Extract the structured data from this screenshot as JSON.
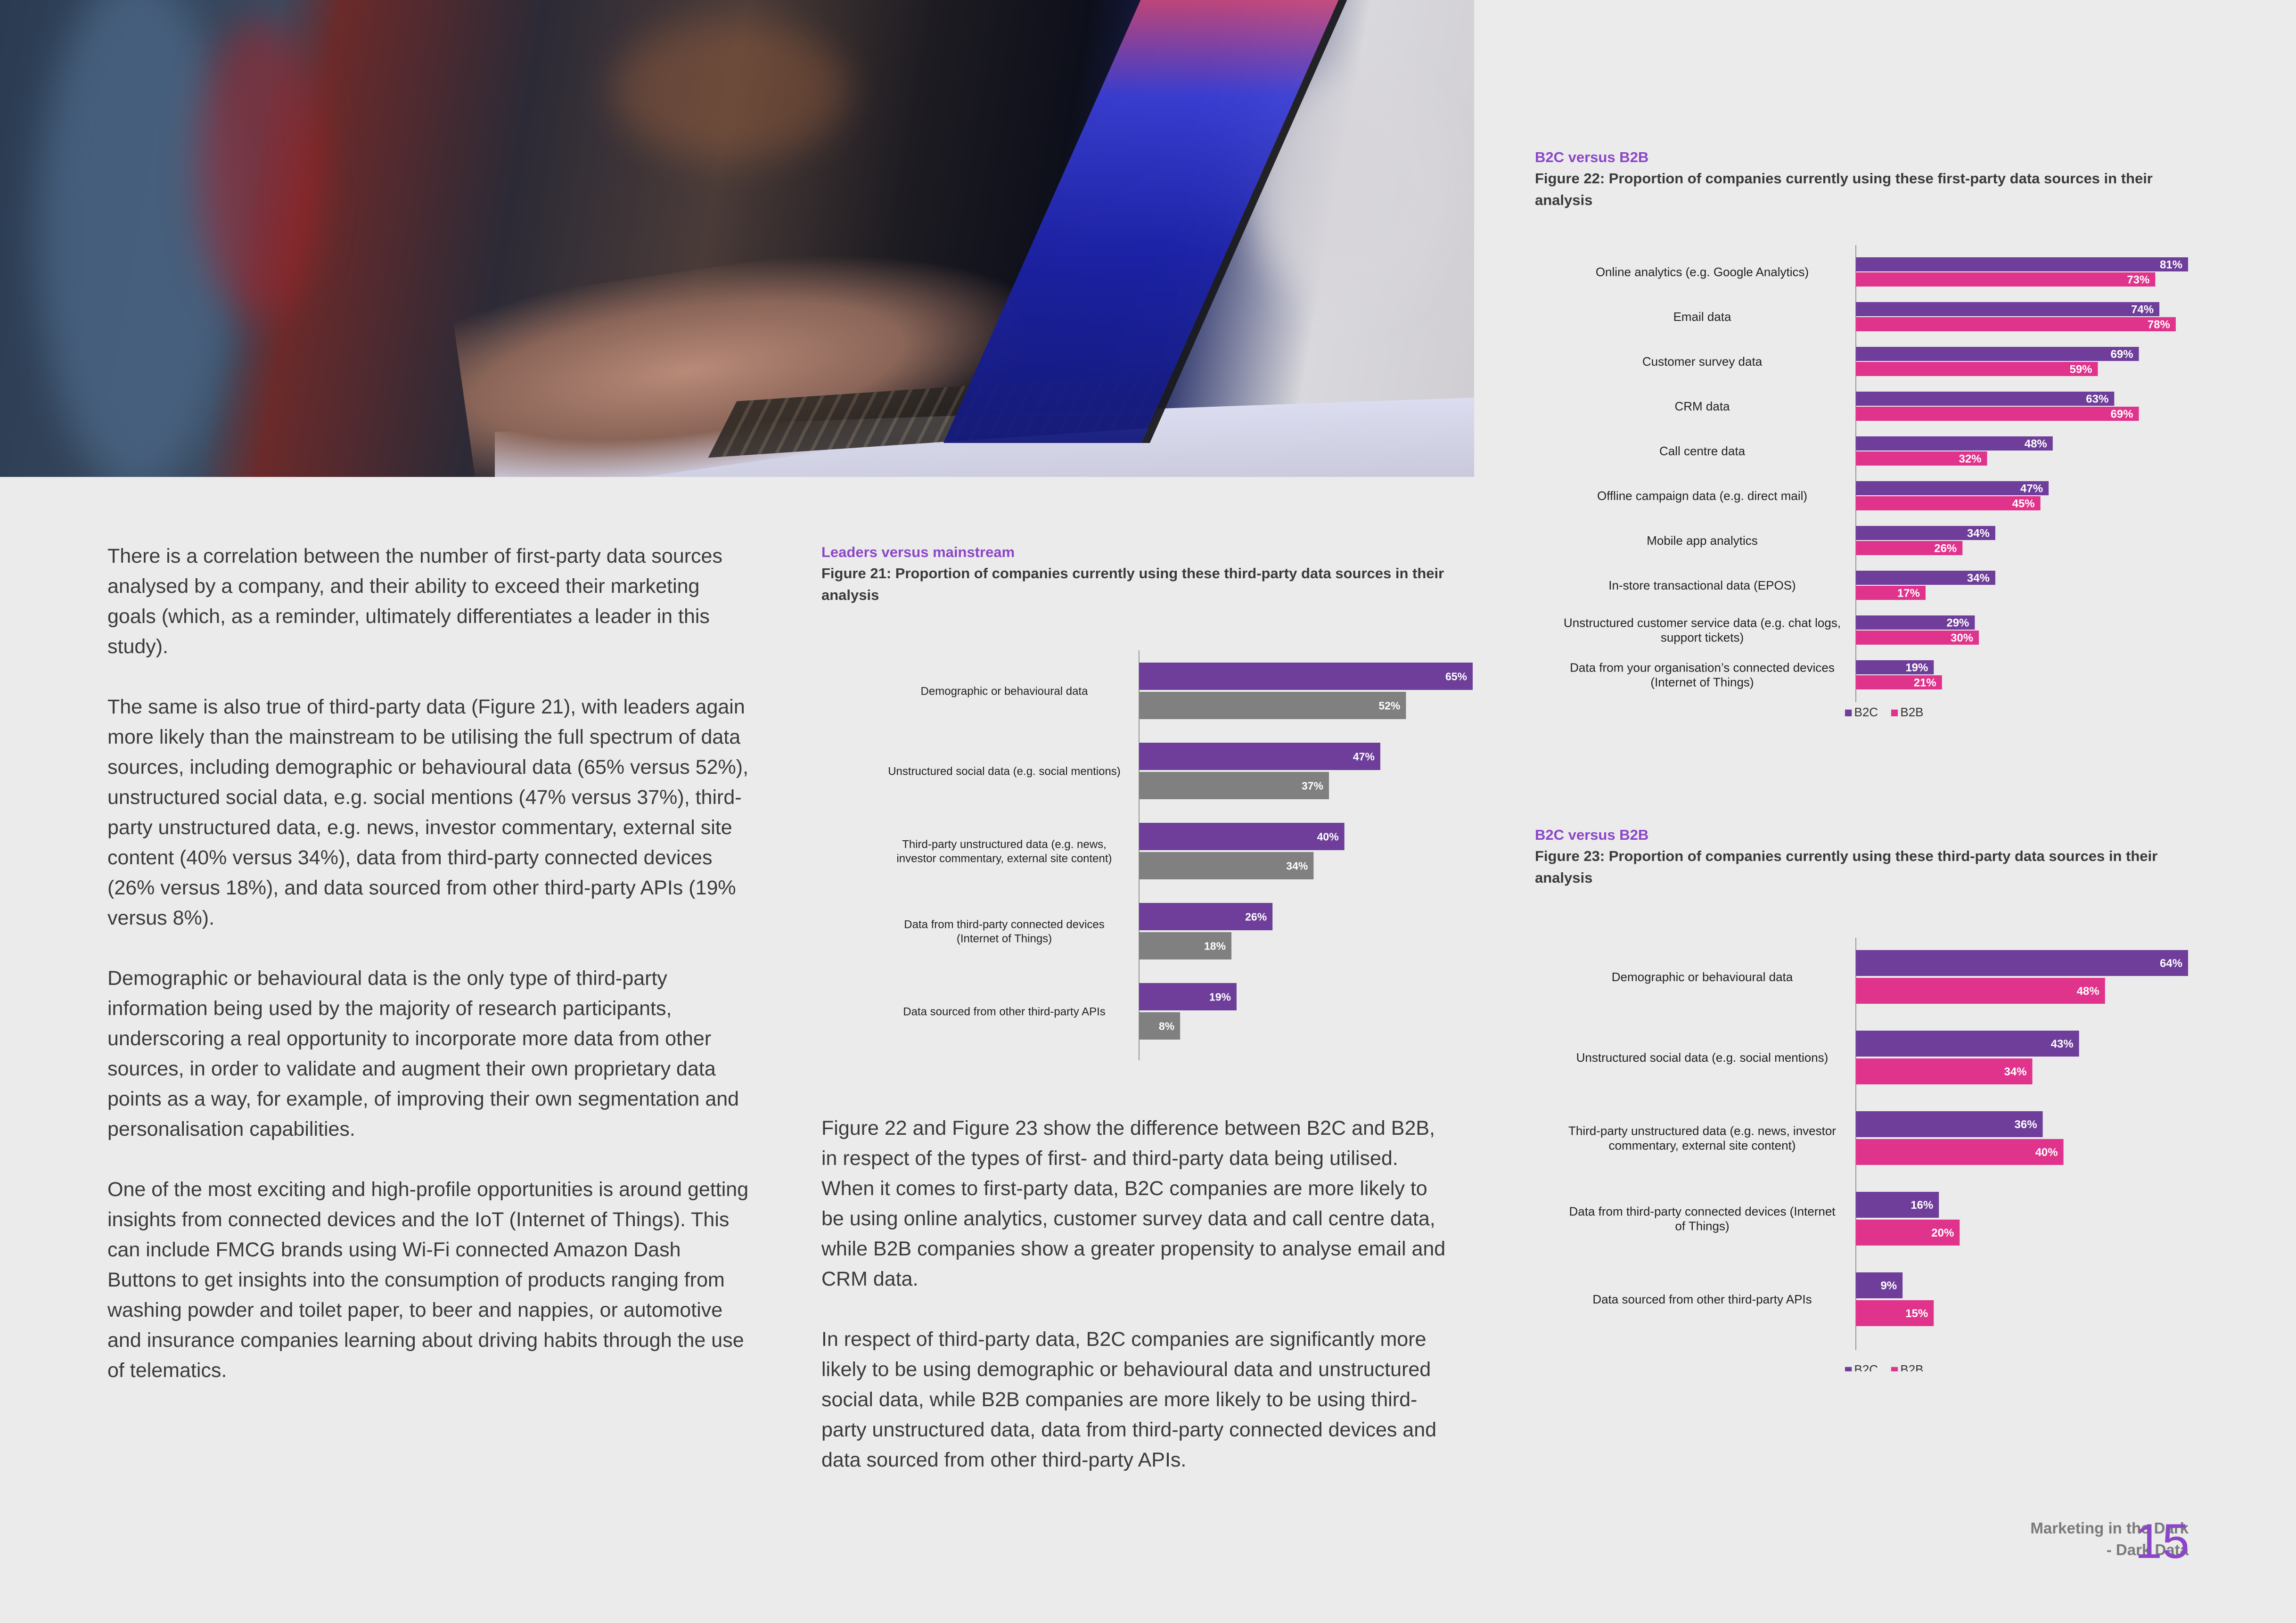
{
  "colors": {
    "leaders": "#6e3e9a",
    "mainstream": "#808080",
    "b2c": "#6e3e9a",
    "b2b": "#e0338c",
    "accent": "#8b46c8"
  },
  "body_paragraphs": [
    "There is a correlation between the number of first-party data sources analysed by a company, and their ability to exceed their marketing goals (which, as a reminder, ultimately differentiates a leader in this study).",
    "The same is also true of third-party data (Figure 21), with leaders again more likely than the mainstream to be utilising the full spectrum of data sources, including demographic or behavioural data (65% versus 52%), unstructured social data, e.g. social mentions (47% versus 37%), third-party unstructured data, e.g. news, investor commentary, external site content (40% versus 34%), data from third-party connected devices (26% versus 18%), and data sourced from other third-party APIs (19% versus 8%).",
    "Demographic or behavioural data is the only type of third-party information being used by the majority of research participants, underscoring a real opportunity to incorporate more data from other sources, in order to validate and augment their own proprietary data points as a way, for example, of improving their own segmentation and personalisation capabilities.",
    "One of the most exciting and high-profile opportunities is around getting insights from connected devices and the IoT (Internet of Things). This can include FMCG brands using Wi-Fi connected Amazon Dash Buttons to get insights into the consumption of products ranging from washing powder and toilet paper, to beer and nappies, or automotive and insurance companies learning about driving habits through the use of telematics."
  ],
  "mid_paragraphs": [
    "Figure 22 and Figure 23 show the difference between B2C and B2B, in respect of the types of first- and third-party data being utilised. When it comes to first-party data, B2C companies are more likely to be using online analytics, customer survey data and call centre data, while B2B companies show a greater propensity to analyse email and CRM data.",
    "In respect of third-party data, B2C companies are significantly more likely to be using demographic or behavioural data and unstructured social data, while B2B companies are more likely to be using third-party unstructured data, data from third-party connected devices and data sourced from other third-party APIs."
  ],
  "footer": {
    "title_line1": "Marketing in the Dark",
    "title_line2": "- Dark Data",
    "page_number": "15"
  },
  "chart_data": [
    {
      "id": "fig21",
      "type": "bar",
      "orientation": "horizontal",
      "subtitle": "Leaders versus mainstream",
      "title": "Figure 21: Proportion of companies currently using these third-party data sources in their analysis",
      "categories": [
        "Demographic or behavioural data",
        "Unstructured social data (e.g. social mentions)",
        "Third-party unstructured data (e.g. news, investor commentary, external site content)",
        "Data from third-party connected devices (Internet of Things)",
        "Data sourced from other third-party APIs"
      ],
      "series": [
        {
          "name": "Leaders",
          "values": [
            65,
            47,
            40,
            26,
            19
          ]
        },
        {
          "name": "Mainstream",
          "values": [
            52,
            37,
            34,
            18,
            8
          ]
        }
      ],
      "value_suffix": "%",
      "xlim": [
        0,
        65
      ],
      "legend": "bottom"
    },
    {
      "id": "fig22",
      "type": "bar",
      "orientation": "horizontal",
      "subtitle": "B2C versus B2B",
      "title": "Figure 22: Proportion of companies currently using these first-party data sources in their analysis",
      "categories": [
        "Online analytics (e.g. Google Analytics)",
        "Email data",
        "Customer survey data",
        "CRM data",
        "Call centre data",
        "Offline campaign data (e.g. direct mail)",
        "Mobile app analytics",
        "In-store transactional data (EPOS)",
        "Unstructured customer service data (e.g. chat logs, support tickets)",
        "Data from your organisation’s connected devices (Internet of Things)"
      ],
      "series": [
        {
          "name": "B2C",
          "values": [
            81,
            74,
            69,
            63,
            48,
            47,
            34,
            34,
            29,
            19
          ]
        },
        {
          "name": "B2B",
          "values": [
            73,
            78,
            59,
            69,
            32,
            45,
            26,
            17,
            30,
            21
          ]
        }
      ],
      "value_suffix": "%",
      "xlim": [
        0,
        81
      ],
      "legend": "bottom"
    },
    {
      "id": "fig23",
      "type": "bar",
      "orientation": "horizontal",
      "subtitle": "B2C versus B2B",
      "title": "Figure 23: Proportion of companies currently using these third-party data sources in their analysis",
      "categories": [
        "Demographic or behavioural data",
        "Unstructured social data (e.g. social mentions)",
        "Third-party unstructured data (e.g. news, investor commentary, external site content)",
        "Data from third-party connected devices (Internet of Things)",
        "Data sourced from other third-party APIs"
      ],
      "series": [
        {
          "name": "B2C",
          "values": [
            64,
            43,
            36,
            16,
            9
          ]
        },
        {
          "name": "B2B",
          "values": [
            48,
            34,
            40,
            20,
            15
          ]
        }
      ],
      "value_suffix": "%",
      "xlim": [
        0,
        64
      ],
      "legend": "bottom"
    }
  ]
}
